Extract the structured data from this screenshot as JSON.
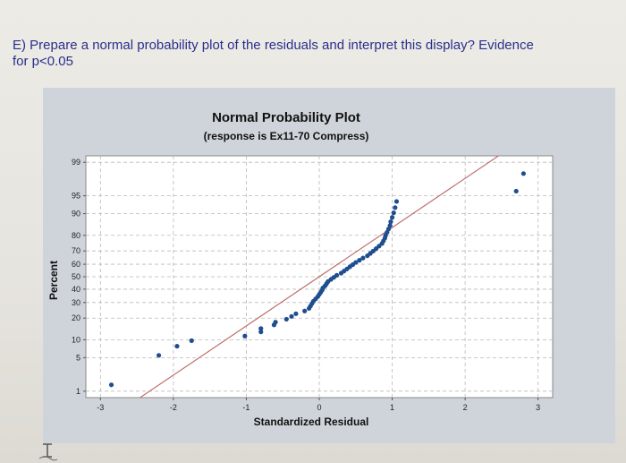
{
  "question": {
    "line1": "E) Prepare a normal probability plot of the residuals and interpret this display? Evidence",
    "line2": "for p<0.05"
  },
  "colors": {
    "question_text": "#2b2f8c",
    "panel": "#cfd4da",
    "plot_area": "#ffffff",
    "points": "#1f4e8f",
    "fit_line": "#c07070",
    "grid": "#b9b9b9"
  },
  "chart_data": {
    "type": "scatter",
    "title": "Normal Probability Plot",
    "subtitle": "(response is Ex11-70 Compress)",
    "xlabel": "Standardized Residual",
    "ylabel": "Percent",
    "xlim": [
      -3.2,
      3.2
    ],
    "y_scale": "normal-probability",
    "ylim": [
      0.7,
      99.3
    ],
    "x_ticks": [
      -3,
      -2,
      -1,
      0,
      1,
      2,
      3
    ],
    "x_tick_labels": [
      "-3",
      "-2",
      "-1",
      "0",
      "1",
      "2",
      "3"
    ],
    "y_ticks": [
      1,
      5,
      10,
      20,
      30,
      40,
      50,
      60,
      70,
      80,
      90,
      95,
      99
    ],
    "y_tick_labels": [
      "1",
      "5",
      "10",
      "20",
      "30",
      "40",
      "50",
      "60",
      "70",
      "80",
      "90",
      "95",
      "99"
    ],
    "grid": true,
    "fit_line": {
      "mean": 0,
      "sd": 1
    },
    "points": [
      {
        "x": -2.85,
        "y": 1.4
      },
      {
        "x": -2.2,
        "y": 5.5
      },
      {
        "x": -1.95,
        "y": 7.9
      },
      {
        "x": -1.75,
        "y": 9.7
      },
      {
        "x": -1.02,
        "y": 11.4
      },
      {
        "x": -0.8,
        "y": 13.1
      },
      {
        "x": -0.8,
        "y": 14.6
      },
      {
        "x": -0.62,
        "y": 16.4
      },
      {
        "x": -0.6,
        "y": 17.8
      },
      {
        "x": -0.45,
        "y": 19.4
      },
      {
        "x": -0.38,
        "y": 21.0
      },
      {
        "x": -0.32,
        "y": 22.6
      },
      {
        "x": -0.2,
        "y": 24.3
      },
      {
        "x": -0.14,
        "y": 26.0
      },
      {
        "x": -0.12,
        "y": 27.6
      },
      {
        "x": -0.1,
        "y": 29.3
      },
      {
        "x": -0.08,
        "y": 30.9
      },
      {
        "x": -0.05,
        "y": 32.6
      },
      {
        "x": -0.02,
        "y": 34.3
      },
      {
        "x": 0.0,
        "y": 36.0
      },
      {
        "x": 0.02,
        "y": 37.6
      },
      {
        "x": 0.04,
        "y": 39.3
      },
      {
        "x": 0.05,
        "y": 41.0
      },
      {
        "x": 0.08,
        "y": 42.7
      },
      {
        "x": 0.1,
        "y": 44.4
      },
      {
        "x": 0.12,
        "y": 46.1
      },
      {
        "x": 0.16,
        "y": 47.8
      },
      {
        "x": 0.2,
        "y": 49.5
      },
      {
        "x": 0.24,
        "y": 51.2
      },
      {
        "x": 0.3,
        "y": 52.9
      },
      {
        "x": 0.34,
        "y": 54.6
      },
      {
        "x": 0.38,
        "y": 56.3
      },
      {
        "x": 0.42,
        "y": 58.0
      },
      {
        "x": 0.46,
        "y": 59.7
      },
      {
        "x": 0.5,
        "y": 61.4
      },
      {
        "x": 0.55,
        "y": 63.1
      },
      {
        "x": 0.6,
        "y": 64.8
      },
      {
        "x": 0.66,
        "y": 66.5
      },
      {
        "x": 0.7,
        "y": 68.2
      },
      {
        "x": 0.74,
        "y": 69.9
      },
      {
        "x": 0.78,
        "y": 71.6
      },
      {
        "x": 0.82,
        "y": 73.3
      },
      {
        "x": 0.86,
        "y": 75.0
      },
      {
        "x": 0.88,
        "y": 76.7
      },
      {
        "x": 0.9,
        "y": 78.4
      },
      {
        "x": 0.91,
        "y": 80.0
      },
      {
        "x": 0.93,
        "y": 81.7
      },
      {
        "x": 0.95,
        "y": 83.4
      },
      {
        "x": 0.97,
        "y": 85.1
      },
      {
        "x": 0.98,
        "y": 86.8
      },
      {
        "x": 1.0,
        "y": 88.6
      },
      {
        "x": 1.02,
        "y": 90.3
      },
      {
        "x": 1.04,
        "y": 92.0
      },
      {
        "x": 1.06,
        "y": 93.7
      },
      {
        "x": 2.7,
        "y": 95.9
      },
      {
        "x": 2.8,
        "y": 98.2
      }
    ]
  }
}
